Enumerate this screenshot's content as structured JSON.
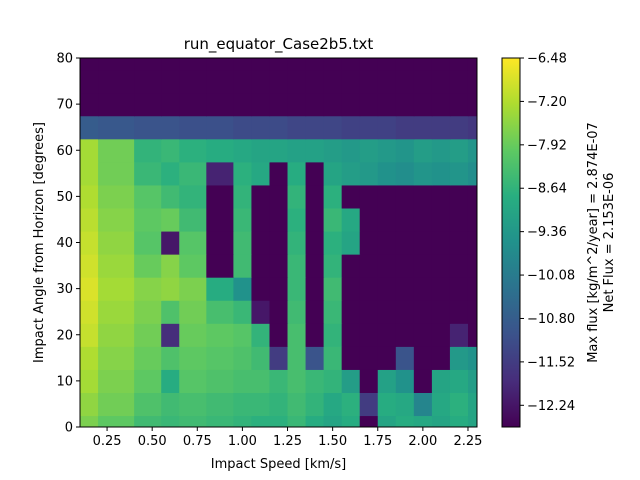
{
  "chart_data": {
    "type": "heatmap",
    "title": "run_equator_Case2b5.txt",
    "xlabel": "Impact Speed [km/s]",
    "ylabel": "Impact Angle from Horizon [degrees]",
    "colorbar_label_line1": "Max flux [kg/m^2/year] = 2.874E-07",
    "colorbar_label_line2": "Net Flux = 2.153E-06",
    "colormap": "viridis",
    "xlim": [
      0.1,
      2.3
    ],
    "ylim": [
      0,
      80
    ],
    "clim": [
      -12.6,
      -6.48
    ],
    "xticks": [
      "0.25",
      "0.50",
      "0.75",
      "1.00",
      "1.25",
      "1.50",
      "1.75",
      "2.00",
      "2.25"
    ],
    "xtick_values": [
      0.25,
      0.5,
      0.75,
      1.0,
      1.25,
      1.5,
      1.75,
      2.0,
      2.25
    ],
    "yticks": [
      "0",
      "10",
      "20",
      "30",
      "40",
      "50",
      "60",
      "70",
      "80"
    ],
    "ytick_values": [
      0,
      10,
      20,
      30,
      40,
      50,
      60,
      70,
      80
    ],
    "cbar_ticks": [
      "−6.48",
      "−7.20",
      "−7.92",
      "−8.64",
      "−9.36",
      "−10.08",
      "−10.80",
      "−11.52",
      "−12.24"
    ],
    "cbar_tick_values": [
      -6.48,
      -7.2,
      -7.92,
      -8.64,
      -9.36,
      -10.08,
      -10.8,
      -11.52,
      -12.24
    ],
    "x": [
      0.1,
      0.3,
      0.5,
      0.6,
      0.7,
      0.9,
      1.0,
      1.1,
      1.2,
      1.3,
      1.4,
      1.5,
      1.6,
      1.7,
      1.8,
      1.9,
      2.0,
      2.1,
      2.2,
      2.3
    ],
    "y": [
      0,
      5,
      10,
      15,
      20,
      25,
      30,
      35,
      40,
      45,
      50,
      55,
      60,
      65,
      70,
      75,
      80
    ],
    "z": [
      [
        -7.7,
        -8.0,
        -8.4,
        -8.5,
        -8.4,
        -8.5,
        -8.6,
        -8.7,
        -8.7,
        -8.5,
        -8.8,
        -9.0,
        -8.8,
        -12.6,
        -9.0,
        -8.8,
        -8.9,
        -9.0,
        -8.8,
        -9.0
      ],
      [
        -7.5,
        -7.8,
        -8.2,
        -8.4,
        -8.3,
        -8.4,
        -8.5,
        -8.5,
        -8.6,
        -8.4,
        -8.6,
        -8.9,
        -8.7,
        -11.5,
        -8.8,
        -8.9,
        -9.8,
        -8.9,
        -8.7,
        -9.0
      ],
      [
        -7.3,
        -7.7,
        -8.0,
        -8.8,
        -8.1,
        -8.2,
        -8.3,
        -8.3,
        -8.5,
        -8.3,
        -8.5,
        -8.6,
        -9.2,
        -12.6,
        -9.1,
        -9.5,
        -12.6,
        -9.0,
        -8.9,
        -9.2
      ],
      [
        -7.2,
        -7.6,
        -7.9,
        -8.2,
        -8.0,
        -8.1,
        -8.2,
        -8.4,
        -11.5,
        -8.3,
        -11.0,
        -8.5,
        -12.6,
        -12.6,
        -12.6,
        -11.0,
        -12.6,
        -12.6,
        -9.3,
        -9.5
      ],
      [
        -7.0,
        -7.5,
        -7.8,
        -11.8,
        -7.9,
        -8.0,
        -8.1,
        -8.6,
        -12.6,
        -8.3,
        -12.6,
        -8.6,
        -12.6,
        -12.6,
        -12.6,
        -12.6,
        -12.6,
        -12.6,
        -12.0,
        -12.6
      ],
      [
        -6.9,
        -7.4,
        -7.7,
        -8.2,
        -7.8,
        -8.3,
        -8.5,
        -12.2,
        -12.6,
        -8.4,
        -12.6,
        -8.5,
        -12.6,
        -12.6,
        -12.6,
        -12.6,
        -12.6,
        -12.6,
        -12.6,
        -12.6
      ],
      [
        -6.8,
        -7.3,
        -7.6,
        -7.5,
        -7.7,
        -8.8,
        -9.5,
        -12.6,
        -12.6,
        -8.5,
        -12.6,
        -8.4,
        -12.6,
        -12.6,
        -12.6,
        -12.6,
        -12.6,
        -12.6,
        -12.6,
        -12.6
      ],
      [
        -6.9,
        -7.4,
        -7.9,
        -7.6,
        -8.0,
        -12.6,
        -8.4,
        -12.6,
        -12.6,
        -8.5,
        -12.6,
        -8.6,
        -12.6,
        -12.6,
        -12.6,
        -12.6,
        -12.6,
        -12.6,
        -12.6,
        -12.6
      ],
      [
        -7.0,
        -7.5,
        -8.1,
        -12.2,
        -8.1,
        -12.6,
        -8.4,
        -12.6,
        -12.6,
        -8.6,
        -12.6,
        -8.7,
        -9.0,
        -12.6,
        -12.6,
        -12.6,
        -12.6,
        -12.6,
        -12.6,
        -12.6
      ],
      [
        -7.1,
        -7.6,
        -8.0,
        -7.9,
        -8.4,
        -12.6,
        -8.5,
        -12.6,
        -12.6,
        -8.7,
        -12.6,
        -8.5,
        -8.9,
        -12.6,
        -12.6,
        -12.6,
        -12.6,
        -12.6,
        -12.6,
        -12.6
      ],
      [
        -7.2,
        -7.7,
        -8.1,
        -8.4,
        -8.6,
        -12.6,
        -8.6,
        -12.6,
        -12.6,
        -8.6,
        -12.6,
        -8.7,
        -12.6,
        -12.6,
        -12.6,
        -12.6,
        -12.6,
        -12.6,
        -12.6,
        -12.6
      ],
      [
        -7.3,
        -7.8,
        -8.5,
        -8.7,
        -8.5,
        -12.0,
        -8.7,
        -8.9,
        -12.6,
        -8.8,
        -12.6,
        -9.0,
        -9.2,
        -9.3,
        -9.5,
        -9.6,
        -9.4,
        -9.5,
        -9.4,
        -9.6
      ],
      [
        -7.3,
        -7.8,
        -8.6,
        -8.5,
        -8.7,
        -8.8,
        -8.9,
        -9.0,
        -9.0,
        -9.1,
        -9.1,
        -9.2,
        -9.3,
        -9.2,
        -9.3,
        -9.4,
        -9.2,
        -9.3,
        -9.2,
        -9.4
      ],
      [
        -10.8,
        -10.9,
        -11.0,
        -11.0,
        -11.1,
        -11.1,
        -11.2,
        -11.2,
        -11.2,
        -11.3,
        -11.3,
        -11.3,
        -11.4,
        -11.4,
        -11.4,
        -11.5,
        -11.5,
        -11.5,
        -11.5,
        -11.6
      ],
      [
        -12.6,
        -12.6,
        -12.6,
        -12.6,
        -12.6,
        -12.6,
        -12.6,
        -12.6,
        -12.6,
        -12.6,
        -12.6,
        -12.6,
        -12.6,
        -12.6,
        -12.6,
        -12.6,
        -12.6,
        -12.6,
        -12.6,
        -12.6
      ],
      [
        -12.6,
        -12.6,
        -12.6,
        -12.6,
        -12.6,
        -12.6,
        -12.6,
        -12.6,
        -12.6,
        -12.6,
        -12.6,
        -12.6,
        -12.6,
        -12.6,
        -12.6,
        -12.6,
        -12.6,
        -12.6,
        -12.6,
        -12.6
      ],
      [
        -12.6,
        -12.6,
        -12.6,
        -12.6,
        -12.6,
        -12.6,
        -12.6,
        -12.6,
        -12.6,
        -12.6,
        -12.6,
        -12.6,
        -12.6,
        -12.6,
        -12.6,
        -12.6,
        -12.6,
        -12.6,
        -12.6,
        -12.6
      ]
    ]
  }
}
